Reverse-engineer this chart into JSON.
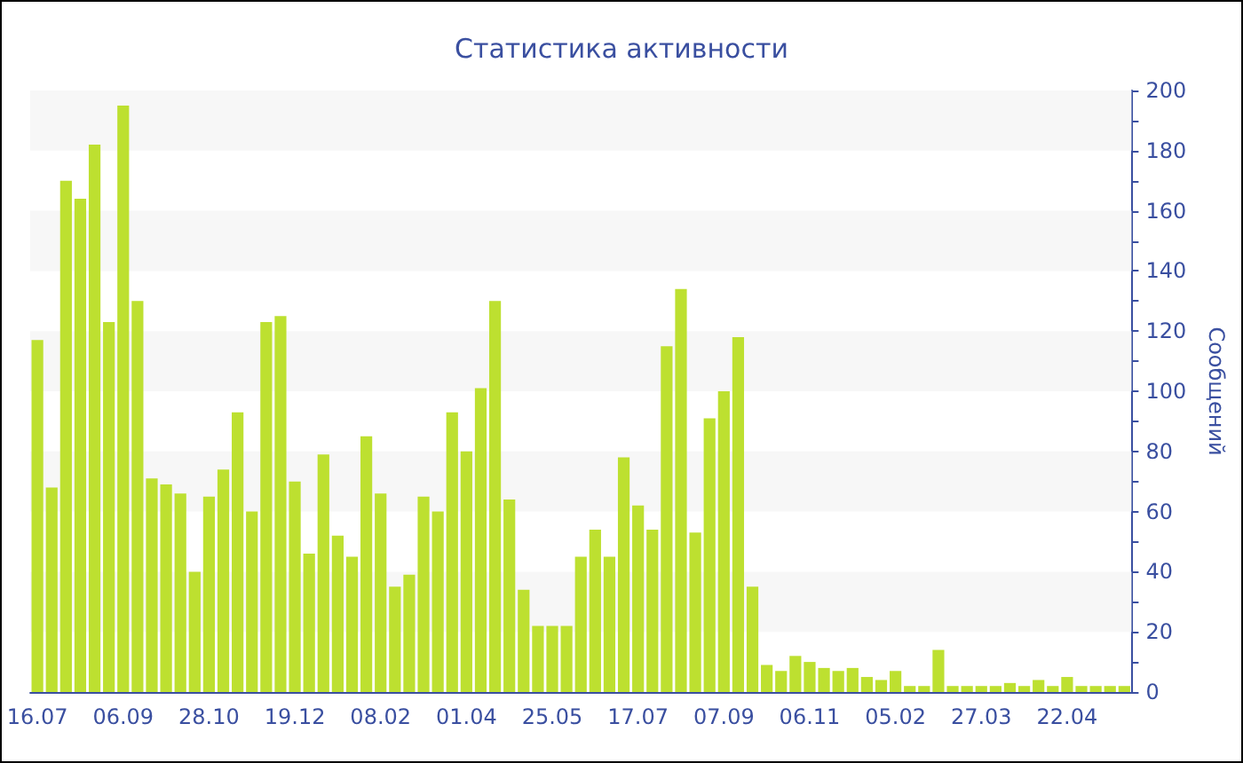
{
  "chart_data": {
    "type": "bar",
    "title": "Статистика активности",
    "ylabel": "Сообщений",
    "categories": [
      "16.07",
      null,
      null,
      null,
      null,
      null,
      "06.09",
      null,
      null,
      null,
      null,
      null,
      "28.10",
      null,
      null,
      null,
      null,
      null,
      "19.12",
      null,
      null,
      null,
      null,
      null,
      "08.02",
      null,
      null,
      null,
      null,
      null,
      "01.04",
      null,
      null,
      null,
      null,
      null,
      "25.05",
      null,
      null,
      null,
      null,
      null,
      "17.07",
      null,
      null,
      null,
      null,
      null,
      "07.09",
      null,
      null,
      null,
      null,
      null,
      "06.11",
      null,
      null,
      null,
      null,
      null,
      "05.02",
      null,
      null,
      null,
      null,
      null,
      "27.03",
      null,
      null,
      null,
      null,
      null,
      "22.04",
      null,
      null,
      null,
      null
    ],
    "values": [
      117,
      68,
      170,
      164,
      182,
      123,
      195,
      130,
      71,
      69,
      66,
      40,
      65,
      74,
      93,
      60,
      123,
      125,
      70,
      46,
      79,
      52,
      45,
      85,
      66,
      35,
      39,
      65,
      60,
      93,
      80,
      101,
      130,
      64,
      34,
      22,
      22,
      22,
      45,
      54,
      45,
      78,
      62,
      54,
      115,
      134,
      53,
      91,
      100,
      118,
      35,
      9,
      7,
      12,
      10,
      8,
      7,
      8,
      5,
      4,
      7,
      2,
      2,
      14,
      2,
      2,
      2,
      2,
      3,
      2,
      4,
      2,
      5,
      2,
      2,
      2,
      2
    ],
    "color": "#bde030",
    "ylim": [
      0,
      200
    ],
    "yticks": [
      0,
      20,
      40,
      60,
      80,
      100,
      120,
      140,
      160,
      180,
      200
    ],
    "bands": [
      {
        "axis": "y",
        "from": 20,
        "to": 40,
        "color": "#f7f7f7"
      },
      {
        "axis": "y",
        "from": 60,
        "to": 80,
        "color": "#f7f7f7"
      },
      {
        "axis": "y",
        "from": 100,
        "to": 120,
        "color": "#f7f7f7"
      },
      {
        "axis": "y",
        "from": 140,
        "to": 160,
        "color": "#f7f7f7"
      },
      {
        "axis": "y",
        "from": 180,
        "to": 200,
        "color": "#f7f7f7"
      }
    ]
  }
}
